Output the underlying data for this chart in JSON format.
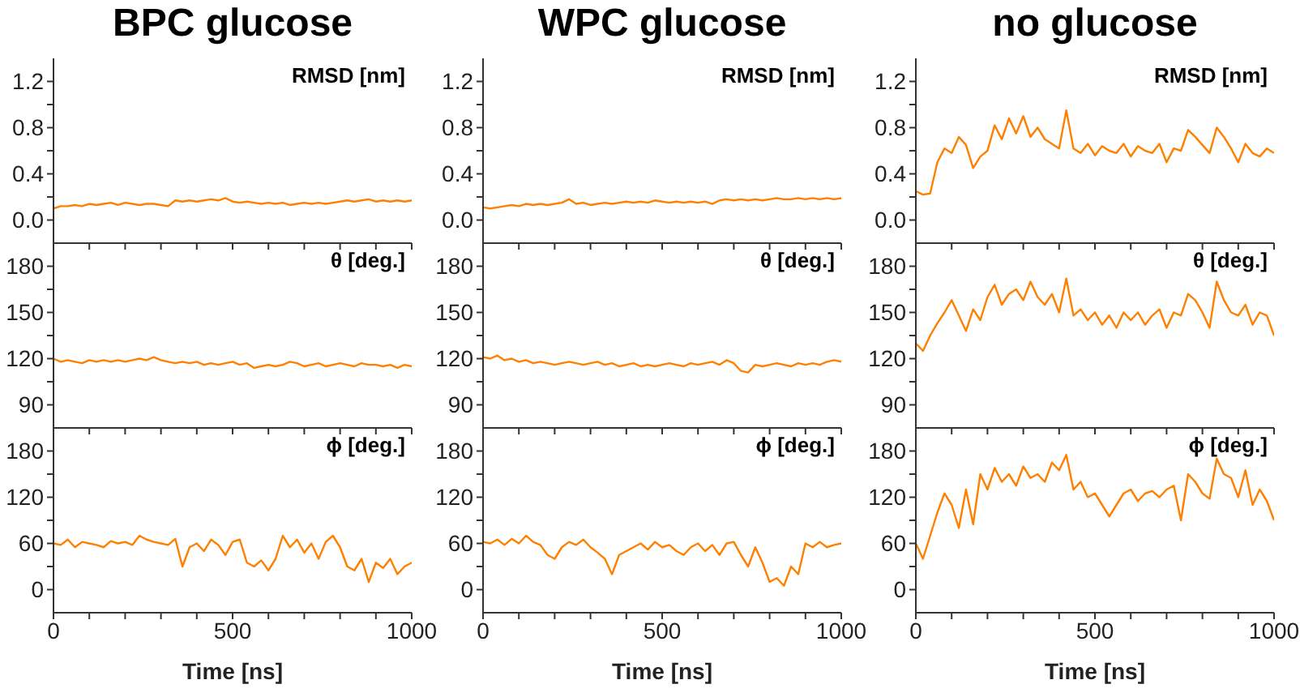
{
  "chart_data": [
    {
      "type": "line",
      "title": "BPC glucose",
      "annotations": [
        "RMSD [nm]"
      ],
      "tick_labels": "y",
      "x": [
        0,
        20,
        40,
        60,
        80,
        100,
        120,
        140,
        160,
        180,
        200,
        220,
        240,
        260,
        280,
        300,
        320,
        340,
        360,
        380,
        400,
        420,
        440,
        460,
        480,
        500,
        520,
        540,
        560,
        580,
        600,
        620,
        640,
        660,
        680,
        700,
        720,
        740,
        760,
        780,
        800,
        820,
        840,
        860,
        880,
        900,
        920,
        940,
        960,
        980,
        1000
      ],
      "xlim": [
        0,
        1000
      ],
      "xticks": [
        0,
        {
          "value": 100,
          "label": null
        },
        {
          "value": 200,
          "label": null
        },
        {
          "value": 300,
          "label": null
        },
        {
          "value": 400,
          "label": null
        },
        500,
        {
          "value": 600,
          "label": null
        },
        {
          "value": 700,
          "label": null
        },
        {
          "value": 800,
          "label": null
        },
        {
          "value": 900,
          "label": null
        },
        1000
      ],
      "ylim": [
        -0.2,
        1.4
      ],
      "yticks": [
        {
          "value": 0,
          "label": "0.0"
        },
        {
          "value": 0.2,
          "label": null
        },
        0.4,
        {
          "value": 0.6,
          "label": null
        },
        0.8,
        {
          "value": 1.0,
          "label": null
        },
        1.2
      ],
      "series": [
        {
          "color": "#ff8000",
          "values": [
            0.1,
            0.12,
            0.12,
            0.13,
            0.12,
            0.14,
            0.13,
            0.14,
            0.15,
            0.13,
            0.15,
            0.14,
            0.13,
            0.14,
            0.14,
            0.13,
            0.12,
            0.17,
            0.16,
            0.17,
            0.16,
            0.17,
            0.18,
            0.17,
            0.19,
            0.16,
            0.15,
            0.16,
            0.15,
            0.14,
            0.15,
            0.14,
            0.15,
            0.13,
            0.14,
            0.15,
            0.14,
            0.15,
            0.14,
            0.15,
            0.16,
            0.17,
            0.16,
            0.17,
            0.18,
            0.16,
            0.17,
            0.16,
            0.17,
            0.16,
            0.17
          ]
        }
      ]
    },
    {
      "type": "line",
      "title": "WPC glucose",
      "annotations": [
        "RMSD [nm]"
      ],
      "tick_labels": "y",
      "x": [
        0,
        20,
        40,
        60,
        80,
        100,
        120,
        140,
        160,
        180,
        200,
        220,
        240,
        260,
        280,
        300,
        320,
        340,
        360,
        380,
        400,
        420,
        440,
        460,
        480,
        500,
        520,
        540,
        560,
        580,
        600,
        620,
        640,
        660,
        680,
        700,
        720,
        740,
        760,
        780,
        800,
        820,
        840,
        860,
        880,
        900,
        920,
        940,
        960,
        980,
        1000
      ],
      "xlim": [
        0,
        1000
      ],
      "xticks": [
        0,
        {
          "value": 100,
          "label": null
        },
        {
          "value": 200,
          "label": null
        },
        {
          "value": 300,
          "label": null
        },
        {
          "value": 400,
          "label": null
        },
        500,
        {
          "value": 600,
          "label": null
        },
        {
          "value": 700,
          "label": null
        },
        {
          "value": 800,
          "label": null
        },
        {
          "value": 900,
          "label": null
        },
        1000
      ],
      "ylim": [
        -0.2,
        1.4
      ],
      "yticks": [
        {
          "value": 0,
          "label": "0.0"
        },
        {
          "value": 0.2,
          "label": null
        },
        0.4,
        {
          "value": 0.6,
          "label": null
        },
        0.8,
        {
          "value": 1.0,
          "label": null
        },
        1.2
      ],
      "series": [
        {
          "color": "#ff8000",
          "values": [
            0.11,
            0.1,
            0.11,
            0.12,
            0.13,
            0.12,
            0.14,
            0.13,
            0.14,
            0.13,
            0.14,
            0.15,
            0.18,
            0.14,
            0.15,
            0.13,
            0.14,
            0.15,
            0.14,
            0.15,
            0.16,
            0.15,
            0.16,
            0.15,
            0.17,
            0.16,
            0.15,
            0.16,
            0.15,
            0.16,
            0.15,
            0.16,
            0.14,
            0.17,
            0.18,
            0.17,
            0.18,
            0.17,
            0.18,
            0.17,
            0.18,
            0.19,
            0.18,
            0.18,
            0.19,
            0.18,
            0.19,
            0.18,
            0.19,
            0.18,
            0.19
          ]
        }
      ]
    },
    {
      "type": "line",
      "title": "no glucose",
      "annotations": [
        "RMSD [nm]"
      ],
      "tick_labels": "y",
      "x": [
        0,
        20,
        40,
        60,
        80,
        100,
        120,
        140,
        160,
        180,
        200,
        220,
        240,
        260,
        280,
        300,
        320,
        340,
        360,
        380,
        400,
        420,
        440,
        460,
        480,
        500,
        520,
        540,
        560,
        580,
        600,
        620,
        640,
        660,
        680,
        700,
        720,
        740,
        760,
        780,
        800,
        820,
        840,
        860,
        880,
        900,
        920,
        940,
        960,
        980,
        1000
      ],
      "xlim": [
        0,
        1000
      ],
      "xticks": [
        0,
        {
          "value": 100,
          "label": null
        },
        {
          "value": 200,
          "label": null
        },
        {
          "value": 300,
          "label": null
        },
        {
          "value": 400,
          "label": null
        },
        500,
        {
          "value": 600,
          "label": null
        },
        {
          "value": 700,
          "label": null
        },
        {
          "value": 800,
          "label": null
        },
        {
          "value": 900,
          "label": null
        },
        1000
      ],
      "ylim": [
        -0.2,
        1.4
      ],
      "yticks": [
        {
          "value": 0,
          "label": "0.0"
        },
        {
          "value": 0.2,
          "label": null
        },
        0.4,
        {
          "value": 0.6,
          "label": null
        },
        0.8,
        {
          "value": 1.0,
          "label": null
        },
        1.2
      ],
      "series": [
        {
          "color": "#ff8000",
          "values": [
            0.25,
            0.22,
            0.23,
            0.5,
            0.62,
            0.58,
            0.72,
            0.65,
            0.45,
            0.55,
            0.6,
            0.82,
            0.7,
            0.88,
            0.75,
            0.9,
            0.72,
            0.8,
            0.7,
            0.66,
            0.62,
            0.95,
            0.62,
            0.58,
            0.66,
            0.56,
            0.64,
            0.6,
            0.58,
            0.66,
            0.55,
            0.64,
            0.6,
            0.58,
            0.66,
            0.5,
            0.62,
            0.6,
            0.78,
            0.72,
            0.65,
            0.58,
            0.8,
            0.72,
            0.62,
            0.5,
            0.66,
            0.58,
            0.55,
            0.62,
            0.58
          ]
        }
      ]
    },
    {
      "type": "line",
      "annotations": [
        "θ [deg.]"
      ],
      "tick_labels": "y",
      "x": [
        0,
        20,
        40,
        60,
        80,
        100,
        120,
        140,
        160,
        180,
        200,
        220,
        240,
        260,
        280,
        300,
        320,
        340,
        360,
        380,
        400,
        420,
        440,
        460,
        480,
        500,
        520,
        540,
        560,
        580,
        600,
        620,
        640,
        660,
        680,
        700,
        720,
        740,
        760,
        780,
        800,
        820,
        840,
        860,
        880,
        900,
        920,
        940,
        960,
        980,
        1000
      ],
      "xlim": [
        0,
        1000
      ],
      "xticks": [
        0,
        {
          "value": 100,
          "label": null
        },
        {
          "value": 200,
          "label": null
        },
        {
          "value": 300,
          "label": null
        },
        {
          "value": 400,
          "label": null
        },
        500,
        {
          "value": 600,
          "label": null
        },
        {
          "value": 700,
          "label": null
        },
        {
          "value": 800,
          "label": null
        },
        {
          "value": 900,
          "label": null
        },
        1000
      ],
      "ylim": [
        75,
        195
      ],
      "yticks": [
        90,
        {
          "value": 105,
          "label": null
        },
        120,
        {
          "value": 135,
          "label": null
        },
        150,
        {
          "value": 165,
          "label": null
        },
        180
      ],
      "series": [
        {
          "color": "#ff8000",
          "values": [
            120,
            118,
            119,
            118,
            117,
            119,
            118,
            119,
            118,
            119,
            118,
            119,
            120,
            119,
            121,
            119,
            118,
            117,
            118,
            117,
            118,
            116,
            117,
            116,
            117,
            118,
            116,
            117,
            114,
            115,
            116,
            115,
            116,
            118,
            117,
            115,
            116,
            117,
            115,
            116,
            117,
            116,
            115,
            117,
            116,
            116,
            115,
            116,
            114,
            116,
            115
          ]
        }
      ]
    },
    {
      "type": "line",
      "annotations": [
        "θ [deg.]"
      ],
      "tick_labels": "y",
      "x": [
        0,
        20,
        40,
        60,
        80,
        100,
        120,
        140,
        160,
        180,
        200,
        220,
        240,
        260,
        280,
        300,
        320,
        340,
        360,
        380,
        400,
        420,
        440,
        460,
        480,
        500,
        520,
        540,
        560,
        580,
        600,
        620,
        640,
        660,
        680,
        700,
        720,
        740,
        760,
        780,
        800,
        820,
        840,
        860,
        880,
        900,
        920,
        940,
        960,
        980,
        1000
      ],
      "xlim": [
        0,
        1000
      ],
      "xticks": [
        0,
        {
          "value": 100,
          "label": null
        },
        {
          "value": 200,
          "label": null
        },
        {
          "value": 300,
          "label": null
        },
        {
          "value": 400,
          "label": null
        },
        500,
        {
          "value": 600,
          "label": null
        },
        {
          "value": 700,
          "label": null
        },
        {
          "value": 800,
          "label": null
        },
        {
          "value": 900,
          "label": null
        },
        1000
      ],
      "ylim": [
        75,
        195
      ],
      "yticks": [
        90,
        {
          "value": 105,
          "label": null
        },
        120,
        {
          "value": 135,
          "label": null
        },
        150,
        {
          "value": 165,
          "label": null
        },
        180
      ],
      "series": [
        {
          "color": "#ff8000",
          "values": [
            121,
            120,
            122,
            119,
            120,
            118,
            119,
            117,
            118,
            117,
            116,
            117,
            118,
            117,
            116,
            117,
            118,
            116,
            117,
            115,
            116,
            117,
            115,
            116,
            115,
            116,
            117,
            116,
            115,
            117,
            116,
            117,
            118,
            116,
            119,
            117,
            112,
            111,
            116,
            115,
            116,
            117,
            116,
            115,
            117,
            116,
            117,
            116,
            118,
            119,
            118
          ]
        }
      ]
    },
    {
      "type": "line",
      "annotations": [
        "θ [deg.]"
      ],
      "tick_labels": "y",
      "x": [
        0,
        20,
        40,
        60,
        80,
        100,
        120,
        140,
        160,
        180,
        200,
        220,
        240,
        260,
        280,
        300,
        320,
        340,
        360,
        380,
        400,
        420,
        440,
        460,
        480,
        500,
        520,
        540,
        560,
        580,
        600,
        620,
        640,
        660,
        680,
        700,
        720,
        740,
        760,
        780,
        800,
        820,
        840,
        860,
        880,
        900,
        920,
        940,
        960,
        980,
        1000
      ],
      "xlim": [
        0,
        1000
      ],
      "xticks": [
        0,
        {
          "value": 100,
          "label": null
        },
        {
          "value": 200,
          "label": null
        },
        {
          "value": 300,
          "label": null
        },
        {
          "value": 400,
          "label": null
        },
        500,
        {
          "value": 600,
          "label": null
        },
        {
          "value": 700,
          "label": null
        },
        {
          "value": 800,
          "label": null
        },
        {
          "value": 900,
          "label": null
        },
        1000
      ],
      "ylim": [
        75,
        195
      ],
      "yticks": [
        90,
        {
          "value": 105,
          "label": null
        },
        120,
        {
          "value": 135,
          "label": null
        },
        150,
        {
          "value": 165,
          "label": null
        },
        180
      ],
      "series": [
        {
          "color": "#ff8000",
          "values": [
            130,
            125,
            135,
            143,
            150,
            158,
            148,
            138,
            152,
            145,
            160,
            168,
            155,
            162,
            165,
            158,
            170,
            160,
            155,
            162,
            150,
            172,
            148,
            152,
            145,
            150,
            142,
            148,
            140,
            150,
            145,
            150,
            142,
            148,
            152,
            140,
            150,
            148,
            162,
            158,
            150,
            140,
            170,
            158,
            150,
            148,
            155,
            142,
            150,
            148,
            135
          ]
        }
      ]
    },
    {
      "type": "line",
      "annotations": [
        "ϕ [deg.]"
      ],
      "xlabel": "Time [ns]",
      "x": [
        0,
        20,
        40,
        60,
        80,
        100,
        120,
        140,
        160,
        180,
        200,
        220,
        240,
        260,
        280,
        300,
        320,
        340,
        360,
        380,
        400,
        420,
        440,
        460,
        480,
        500,
        520,
        540,
        560,
        580,
        600,
        620,
        640,
        660,
        680,
        700,
        720,
        740,
        760,
        780,
        800,
        820,
        840,
        860,
        880,
        900,
        920,
        940,
        960,
        980,
        1000
      ],
      "xlim": [
        0,
        1000
      ],
      "xticks": [
        0,
        {
          "value": 100,
          "label": null
        },
        {
          "value": 200,
          "label": null
        },
        {
          "value": 300,
          "label": null
        },
        {
          "value": 400,
          "label": null
        },
        500,
        {
          "value": 600,
          "label": null
        },
        {
          "value": 700,
          "label": null
        },
        {
          "value": 800,
          "label": null
        },
        {
          "value": 900,
          "label": null
        },
        1000
      ],
      "ylim": [
        -30,
        210
      ],
      "yticks": [
        0,
        {
          "value": 30,
          "label": null
        },
        60,
        {
          "value": 90,
          "label": null
        },
        120,
        {
          "value": 150,
          "label": null
        },
        180
      ],
      "series": [
        {
          "color": "#ff8000",
          "values": [
            60,
            58,
            65,
            55,
            62,
            60,
            58,
            55,
            63,
            60,
            62,
            58,
            70,
            65,
            62,
            60,
            58,
            66,
            30,
            55,
            60,
            50,
            65,
            58,
            45,
            62,
            65,
            35,
            30,
            38,
            25,
            40,
            70,
            55,
            65,
            48,
            60,
            40,
            62,
            70,
            55,
            30,
            25,
            40,
            10,
            35,
            28,
            40,
            20,
            30,
            35
          ]
        }
      ]
    },
    {
      "type": "line",
      "annotations": [
        "ϕ [deg.]"
      ],
      "xlabel": "Time [ns]",
      "x": [
        0,
        20,
        40,
        60,
        80,
        100,
        120,
        140,
        160,
        180,
        200,
        220,
        240,
        260,
        280,
        300,
        320,
        340,
        360,
        380,
        400,
        420,
        440,
        460,
        480,
        500,
        520,
        540,
        560,
        580,
        600,
        620,
        640,
        660,
        680,
        700,
        720,
        740,
        760,
        780,
        800,
        820,
        840,
        860,
        880,
        900,
        920,
        940,
        960,
        980,
        1000
      ],
      "xlim": [
        0,
        1000
      ],
      "xticks": [
        0,
        {
          "value": 100,
          "label": null
        },
        {
          "value": 200,
          "label": null
        },
        {
          "value": 300,
          "label": null
        },
        {
          "value": 400,
          "label": null
        },
        500,
        {
          "value": 600,
          "label": null
        },
        {
          "value": 700,
          "label": null
        },
        {
          "value": 800,
          "label": null
        },
        {
          "value": 900,
          "label": null
        },
        1000
      ],
      "ylim": [
        -30,
        210
      ],
      "yticks": [
        0,
        {
          "value": 30,
          "label": null
        },
        60,
        {
          "value": 90,
          "label": null
        },
        120,
        {
          "value": 150,
          "label": null
        },
        180
      ],
      "series": [
        {
          "color": "#ff8000",
          "values": [
            62,
            60,
            65,
            58,
            66,
            60,
            70,
            62,
            58,
            45,
            40,
            55,
            62,
            58,
            65,
            55,
            48,
            40,
            20,
            45,
            50,
            55,
            60,
            52,
            62,
            55,
            58,
            50,
            45,
            55,
            60,
            50,
            58,
            45,
            60,
            62,
            45,
            30,
            55,
            35,
            10,
            15,
            5,
            30,
            20,
            60,
            55,
            62,
            55,
            58,
            60
          ]
        }
      ]
    },
    {
      "type": "line",
      "annotations": [
        "ϕ [deg.]"
      ],
      "xlabel": "Time [ns]",
      "x": [
        0,
        20,
        40,
        60,
        80,
        100,
        120,
        140,
        160,
        180,
        200,
        220,
        240,
        260,
        280,
        300,
        320,
        340,
        360,
        380,
        400,
        420,
        440,
        460,
        480,
        500,
        520,
        540,
        560,
        580,
        600,
        620,
        640,
        660,
        680,
        700,
        720,
        740,
        760,
        780,
        800,
        820,
        840,
        860,
        880,
        900,
        920,
        940,
        960,
        980,
        1000
      ],
      "xlim": [
        0,
        1000
      ],
      "xticks": [
        0,
        {
          "value": 100,
          "label": null
        },
        {
          "value": 200,
          "label": null
        },
        {
          "value": 300,
          "label": null
        },
        {
          "value": 400,
          "label": null
        },
        500,
        {
          "value": 600,
          "label": null
        },
        {
          "value": 700,
          "label": null
        },
        {
          "value": 800,
          "label": null
        },
        {
          "value": 900,
          "label": null
        },
        1000
      ],
      "ylim": [
        -30,
        210
      ],
      "yticks": [
        0,
        {
          "value": 30,
          "label": null
        },
        60,
        {
          "value": 90,
          "label": null
        },
        120,
        {
          "value": 150,
          "label": null
        },
        180
      ],
      "series": [
        {
          "color": "#ff8000",
          "values": [
            60,
            40,
            70,
            100,
            125,
            110,
            80,
            130,
            85,
            150,
            130,
            158,
            140,
            150,
            135,
            160,
            145,
            150,
            140,
            165,
            155,
            175,
            130,
            140,
            120,
            125,
            110,
            95,
            110,
            125,
            130,
            115,
            125,
            128,
            120,
            130,
            135,
            90,
            150,
            140,
            125,
            118,
            170,
            150,
            145,
            120,
            155,
            110,
            130,
            115,
            90
          ]
        }
      ]
    }
  ]
}
